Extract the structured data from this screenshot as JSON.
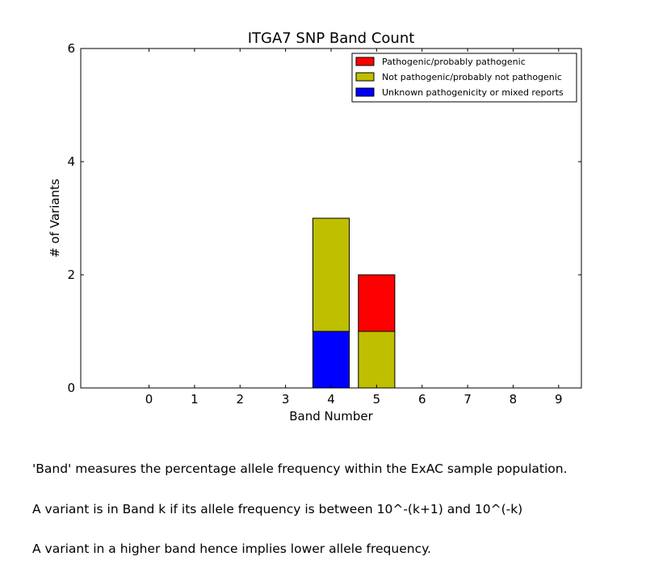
{
  "chart_data": {
    "type": "bar",
    "stacked": true,
    "title": "ITGA7 SNP Band Count",
    "xlabel": "Band Number",
    "ylabel": "# of Variants",
    "categories": [
      "0",
      "1",
      "2",
      "3",
      "4",
      "5",
      "6",
      "7",
      "8",
      "9"
    ],
    "xlim": [
      -1.5,
      9.5
    ],
    "ylim": [
      0,
      6
    ],
    "yticks": [
      "0",
      "2",
      "4",
      "6"
    ],
    "grid": false,
    "legend_position": "top-right",
    "series": [
      {
        "name": "Unknown pathogenicity or mixed reports",
        "color": "#0000ff",
        "values": [
          0,
          0,
          0,
          0,
          1,
          0,
          0,
          0,
          0,
          0
        ]
      },
      {
        "name": "Not pathogenic/probably not pathogenic",
        "color": "#bfbf00",
        "values": [
          0,
          0,
          0,
          0,
          2,
          1,
          0,
          0,
          0,
          0
        ]
      },
      {
        "name": "Pathogenic/probably pathogenic",
        "color": "#ff0000",
        "values": [
          0,
          0,
          0,
          0,
          0,
          1,
          0,
          0,
          0,
          0
        ]
      }
    ],
    "legend_order": [
      "Pathogenic/probably pathogenic",
      "Not pathogenic/probably not pathogenic",
      "Unknown pathogenicity or mixed reports"
    ]
  },
  "caption": {
    "line1": "'Band' measures the percentage allele frequency within the ExAC sample population.",
    "line2": "A variant is in Band k if its allele frequency is between 10^-(k+1) and 10^(-k)",
    "line3": "A variant in a higher band hence implies lower allele frequency."
  }
}
